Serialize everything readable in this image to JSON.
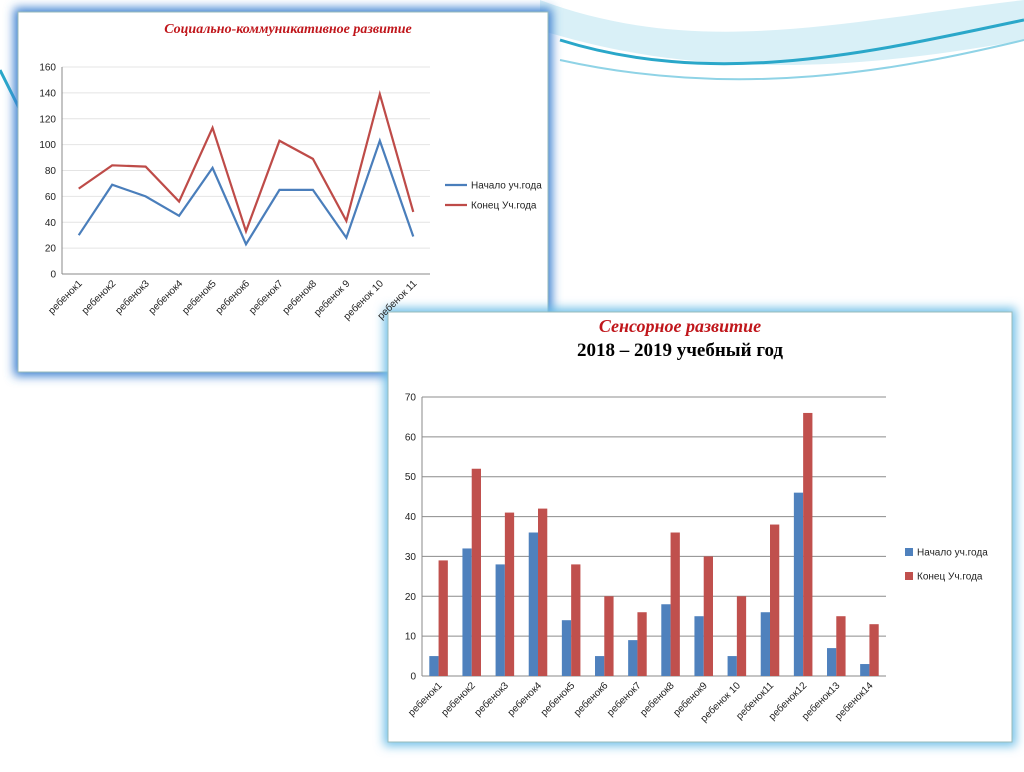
{
  "chart_data": [
    {
      "type": "line",
      "title": "Социально-коммуникативное развитие",
      "categories": [
        "ребенок1",
        "ребенок2",
        "ребенок3",
        "ребенок4",
        "ребенок5",
        "ребенок6",
        "ребенок7",
        "ребенок8",
        "ребенок 9",
        "ребенок 10",
        "ребенок 11"
      ],
      "series": [
        {
          "name": "Начало уч.года",
          "color": "#4a7ebb",
          "values": [
            30,
            69,
            60,
            45,
            82,
            23,
            65,
            65,
            28,
            103,
            29
          ]
        },
        {
          "name": "Конец Уч.года",
          "color": "#be4b48",
          "values": [
            66,
            84,
            83,
            56,
            113,
            33,
            103,
            89,
            41,
            139,
            48
          ]
        }
      ],
      "ylim": [
        0,
        160
      ],
      "yticks": [
        0,
        20,
        40,
        60,
        80,
        100,
        120,
        140,
        160
      ],
      "grid": true,
      "legend": "right"
    },
    {
      "type": "bar",
      "title": "Сенсорное  развитие",
      "subtitle": "2018 – 2019 учебный год",
      "categories": [
        "ребенок1",
        "ребенок2",
        "ребенок3",
        "ребенок4",
        "ребенок5",
        "ребенок6",
        "ребенок7",
        "ребенок8",
        "ребенок9",
        "ребенок 10",
        "ребенок11",
        "ребенок12",
        "ребенок13",
        "ребенок14"
      ],
      "series": [
        {
          "name": "Начало уч.года",
          "color": "#4f81bd",
          "values": [
            5,
            32,
            28,
            36,
            14,
            5,
            9,
            18,
            15,
            5,
            16,
            46,
            7,
            3
          ]
        },
        {
          "name": "Конец Уч.года",
          "color": "#c0504d",
          "values": [
            29,
            52,
            41,
            42,
            28,
            20,
            16,
            36,
            30,
            20,
            38,
            66,
            15,
            13
          ]
        }
      ],
      "ylim": [
        0,
        70
      ],
      "yticks": [
        0,
        10,
        20,
        30,
        40,
        50,
        60,
        70
      ],
      "grid": true,
      "legend": "right"
    }
  ]
}
